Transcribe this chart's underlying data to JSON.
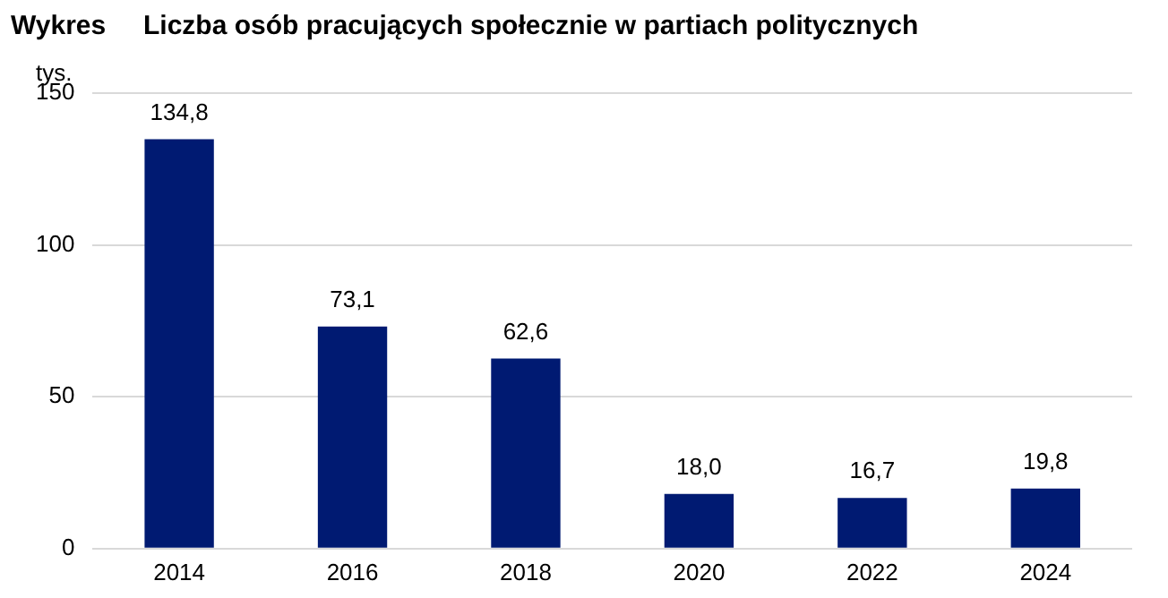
{
  "chart_data": {
    "type": "bar",
    "title": "Wykres",
    "subtitle": "Liczba osób pracujących społecznie w partiach politycznych",
    "ylabel": "tys.",
    "categories": [
      "2014",
      "2016",
      "2018",
      "2020",
      "2022",
      "2024"
    ],
    "values": [
      134.8,
      73.1,
      62.6,
      18.0,
      16.7,
      19.8
    ],
    "value_labels": [
      "134,8",
      "73,1",
      "62,6",
      "18,0",
      "16,7",
      "19,8"
    ],
    "color": "#001a72",
    "ylim": [
      0,
      150
    ],
    "yticks": [
      0,
      50,
      100,
      150
    ],
    "grid": "y",
    "legend": false
  }
}
